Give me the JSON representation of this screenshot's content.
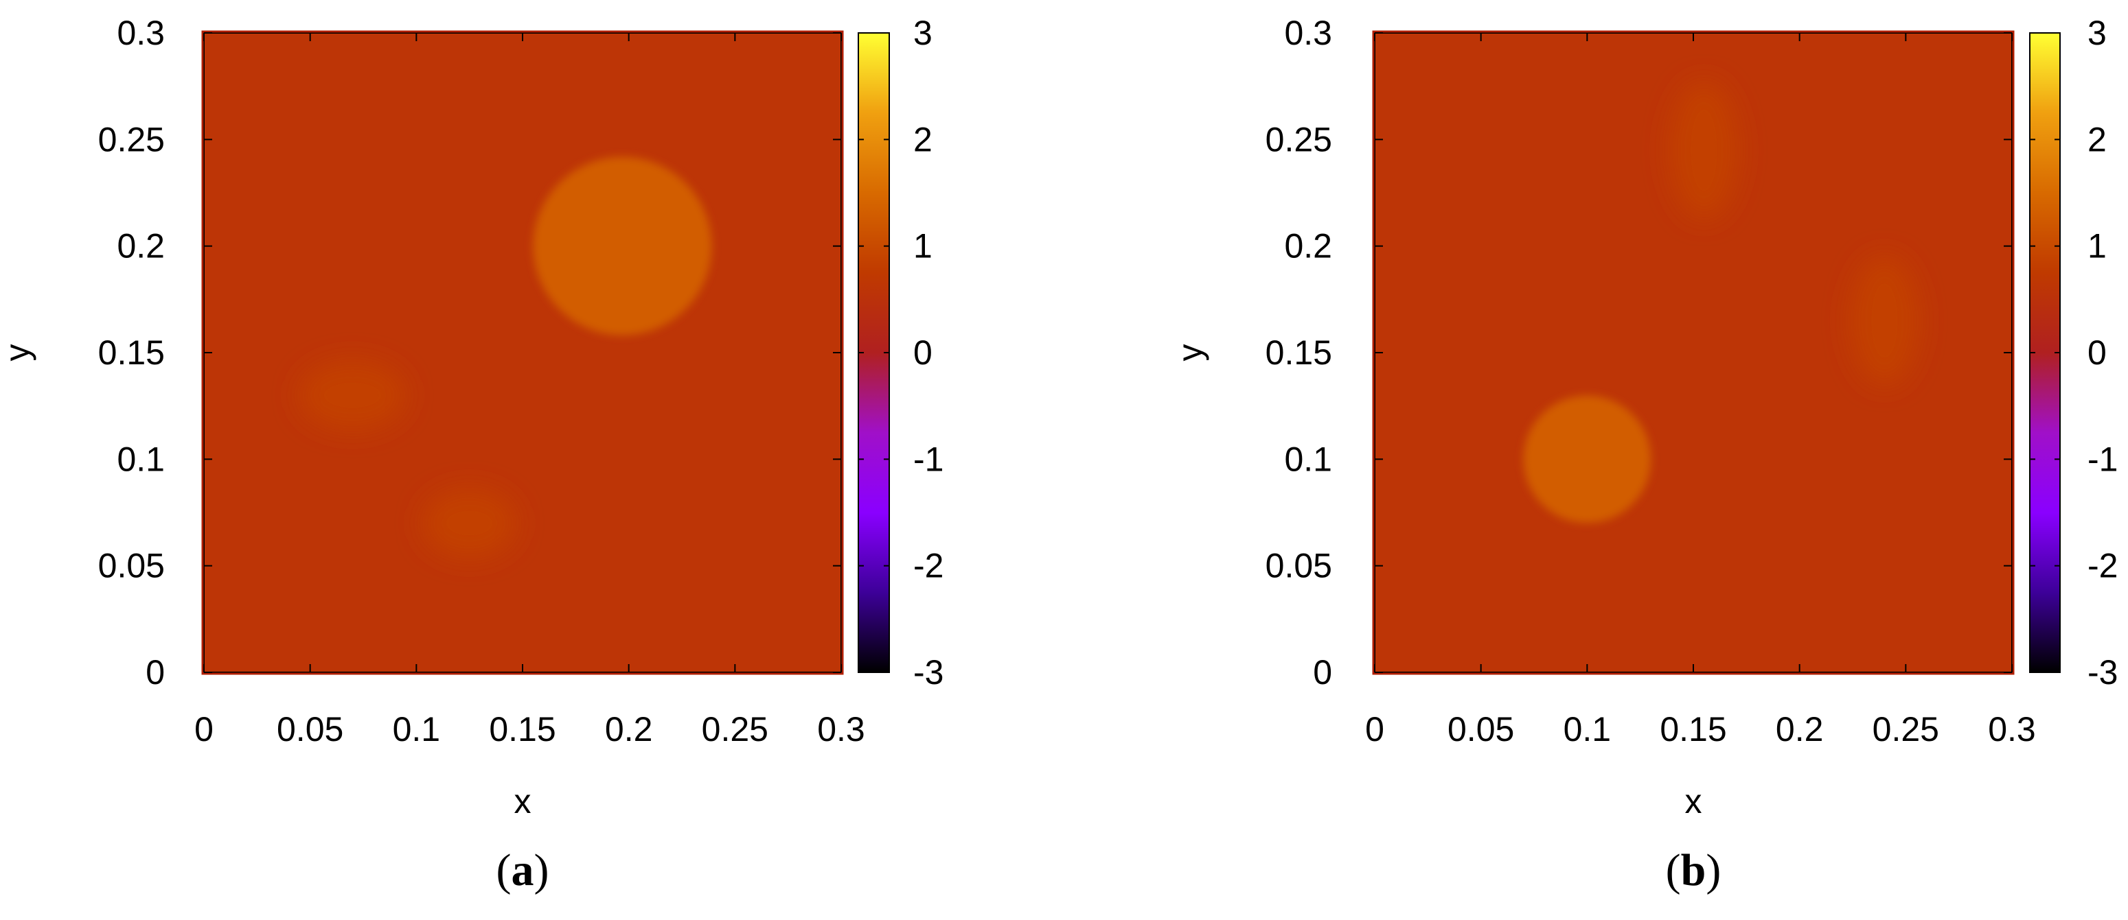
{
  "chart_data": [
    {
      "type": "heatmap",
      "panel_label": "(a)",
      "panel_letter": "a",
      "xlabel": "x",
      "ylabel": "y",
      "xlim": [
        0,
        0.3
      ],
      "ylim": [
        0,
        0.3
      ],
      "xticks": [
        "0",
        "0.05",
        "0.1",
        "0.15",
        "0.2",
        "0.25",
        "0.3"
      ],
      "yticks": [
        "0",
        "0.05",
        "0.1",
        "0.15",
        "0.2",
        "0.25",
        "0.3"
      ],
      "colorbar": {
        "range": [
          -3,
          3
        ],
        "ticks": [
          "3",
          "2",
          "1",
          "0",
          "-1",
          "-2",
          "-3"
        ],
        "colormap": [
          "#000000",
          "#3d0099",
          "#8a00ff",
          "#a010c8",
          "#b02020",
          "#c03a00",
          "#d86a00",
          "#f0a010",
          "#ffff33"
        ]
      },
      "background_value": 0.6,
      "features": [
        {
          "shape": "disk",
          "x": 0.197,
          "y": 0.2,
          "radius": 0.042,
          "value": 1.3
        },
        {
          "shape": "blob",
          "x": 0.07,
          "y": 0.13,
          "rx": 0.025,
          "ry": 0.016,
          "value": 0.85
        },
        {
          "shape": "blob",
          "x": 0.125,
          "y": 0.07,
          "rx": 0.022,
          "ry": 0.016,
          "value": 0.85
        }
      ]
    },
    {
      "type": "heatmap",
      "panel_label": "(b)",
      "panel_letter": "b",
      "xlabel": "x",
      "ylabel": "y",
      "xlim": [
        0,
        0.3
      ],
      "ylim": [
        0,
        0.3
      ],
      "xticks": [
        "0",
        "0.05",
        "0.1",
        "0.15",
        "0.2",
        "0.25",
        "0.3"
      ],
      "yticks": [
        "0",
        "0.05",
        "0.1",
        "0.15",
        "0.2",
        "0.25",
        "0.3"
      ],
      "colorbar": {
        "range": [
          -3,
          3
        ],
        "ticks": [
          "3",
          "2",
          "1",
          "0",
          "-1",
          "-2",
          "-3"
        ],
        "colormap": [
          "#000000",
          "#3d0099",
          "#8a00ff",
          "#a010c8",
          "#b02020",
          "#c03a00",
          "#d86a00",
          "#f0a010",
          "#ffff33"
        ]
      },
      "background_value": 0.6,
      "features": [
        {
          "shape": "disk",
          "x": 0.1,
          "y": 0.1,
          "radius": 0.03,
          "value": 1.3
        },
        {
          "shape": "blob",
          "x": 0.155,
          "y": 0.245,
          "rx": 0.016,
          "ry": 0.032,
          "value": 0.85
        },
        {
          "shape": "blob",
          "x": 0.24,
          "y": 0.165,
          "rx": 0.016,
          "ry": 0.03,
          "value": 0.85
        }
      ]
    }
  ]
}
